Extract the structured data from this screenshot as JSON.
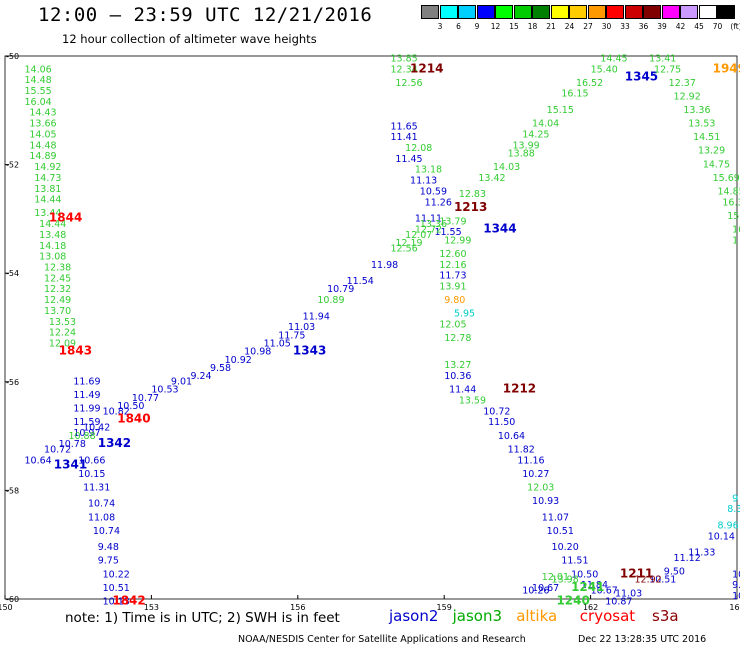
{
  "title": "12:00 – 23:59 UTC 12/21/2016",
  "subtitle": "12 hour collection of altimeter wave heights",
  "scale": {
    "colors": [
      "#808080",
      "#00ffff",
      "#00d0ff",
      "#0000ff",
      "#00ff00",
      "#00cc00",
      "#008000",
      "#ffff00",
      "#ffcc00",
      "#ff9900",
      "#ff0000",
      "#cc0000",
      "#800000",
      "#ff00ff",
      "#cc99ff",
      "#ffffff",
      "#000000"
    ],
    "labels": [
      "3",
      "6",
      "9",
      "12",
      "15",
      "18",
      "21",
      "24",
      "27",
      "30",
      "33",
      "36",
      "39",
      "42",
      "45",
      "70",
      "(ft)"
    ]
  },
  "note": "note: 1) Time is in UTC; 2) SWH is in feet",
  "satellites": [
    {
      "name": "jason2",
      "color": "#0000cc"
    },
    {
      "name": "jason3",
      "color": "#00aa00"
    },
    {
      "name": "altika",
      "color": "#ff9900"
    },
    {
      "name": "cryosat",
      "color": "#ff0000"
    },
    {
      "name": "s3a",
      "color": "#8b0000"
    }
  ],
  "footer": "NOAA/NESDIS Center for Satellite Applications and Research",
  "footer_time": "Dec 22 13:28:35 UTC 2016",
  "colors": {
    "jason2": "#0000cc",
    "jason3": "#33cc33",
    "altika": "#ff9900",
    "cryosat": "#ff0000",
    "s3a": "#800000",
    "s3a_light": "#00cccc"
  },
  "chart_data": {
    "type": "scatter",
    "title": "12:00 – 23:59 UTC 12/21/2016",
    "subtitle": "12 hour collection of altimeter wave heights",
    "xlim": [
      150,
      165
    ],
    "ylim": [
      -60,
      -50
    ],
    "x_ticks": [
      "150",
      "153",
      "156",
      "159",
      "162",
      "165"
    ],
    "y_ticks": [
      "-50",
      "-52",
      "-54",
      "-56",
      "-58",
      "-60"
    ],
    "grid": false,
    "series": [
      {
        "name": "jason2",
        "color": "#0000cc",
        "points": [
          {
            "x": 151.0,
            "y": -57.6,
            "v": "1341",
            "kind": "time"
          },
          {
            "x": 151.9,
            "y": -57.2,
            "v": "1342",
            "kind": "time"
          },
          {
            "x": 155.9,
            "y": -55.5,
            "v": "1343",
            "kind": "time"
          },
          {
            "x": 159.8,
            "y": -53.25,
            "v": "1344",
            "kind": "time"
          },
          {
            "x": 162.7,
            "y": -50.45,
            "v": "1345",
            "kind": "time"
          },
          {
            "x": 150.4,
            "y": -57.5,
            "v": "10.64"
          },
          {
            "x": 150.8,
            "y": -57.3,
            "v": "10.72"
          },
          {
            "x": 151.1,
            "y": -57.2,
            "v": "10.78"
          },
          {
            "x": 151.4,
            "y": -57.0,
            "v": "10.97"
          },
          {
            "x": 151.6,
            "y": -56.9,
            "v": "10.42"
          },
          {
            "x": 152.0,
            "y": -56.6,
            "v": "10.82"
          },
          {
            "x": 152.3,
            "y": -56.5,
            "v": "10.50"
          },
          {
            "x": 152.6,
            "y": -56.35,
            "v": "10.77"
          },
          {
            "x": 153.0,
            "y": -56.2,
            "v": "10.53"
          },
          {
            "x": 153.4,
            "y": -56.05,
            "v": "9.01"
          },
          {
            "x": 153.8,
            "y": -55.95,
            "v": "9.24"
          },
          {
            "x": 154.2,
            "y": -55.8,
            "v": "9.58"
          },
          {
            "x": 154.5,
            "y": -55.65,
            "v": "10.92"
          },
          {
            "x": 154.9,
            "y": -55.5,
            "v": "10.98"
          },
          {
            "x": 155.3,
            "y": -55.35,
            "v": "11.05"
          },
          {
            "x": 155.6,
            "y": -55.2,
            "v": "11.75"
          },
          {
            "x": 155.8,
            "y": -55.05,
            "v": "11.03"
          },
          {
            "x": 156.1,
            "y": -54.85,
            "v": "11.94"
          },
          {
            "x": 156.6,
            "y": -54.35,
            "v": "10.79"
          },
          {
            "x": 157.0,
            "y": -54.2,
            "v": "11.54"
          },
          {
            "x": 157.5,
            "y": -53.9,
            "v": "11.98"
          },
          {
            "x": 158.8,
            "y": -53.3,
            "v": "11.55"
          },
          {
            "x": 158.4,
            "y": -53.05,
            "v": "11.11"
          },
          {
            "x": 157.9,
            "y": -51.35,
            "v": "11.65"
          },
          {
            "x": 157.9,
            "y": -51.55,
            "v": "11.41"
          },
          {
            "x": 158.0,
            "y": -51.95,
            "v": "11.45"
          },
          {
            "x": 158.3,
            "y": -52.35,
            "v": "11.13"
          },
          {
            "x": 158.5,
            "y": -52.55,
            "v": "10.59"
          },
          {
            "x": 158.6,
            "y": -52.75,
            "v": "11.26"
          },
          {
            "x": 158.9,
            "y": -54.1,
            "v": "11.73"
          },
          {
            "x": 159.0,
            "y": -55.95,
            "v": "10.36"
          },
          {
            "x": 159.1,
            "y": -56.2,
            "v": "11.44"
          },
          {
            "x": 159.8,
            "y": -56.6,
            "v": "10.72"
          },
          {
            "x": 159.9,
            "y": -56.8,
            "v": "11.50"
          },
          {
            "x": 160.1,
            "y": -57.05,
            "v": "10.64"
          },
          {
            "x": 160.3,
            "y": -57.3,
            "v": "11.82"
          },
          {
            "x": 160.5,
            "y": -57.5,
            "v": "11.16"
          },
          {
            "x": 160.6,
            "y": -57.75,
            "v": "10.27"
          },
          {
            "x": 160.8,
            "y": -58.25,
            "v": "10.93"
          },
          {
            "x": 161.0,
            "y": -58.55,
            "v": "11.07"
          },
          {
            "x": 161.1,
            "y": -58.8,
            "v": "10.51"
          },
          {
            "x": 161.2,
            "y": -59.1,
            "v": "10.20"
          },
          {
            "x": 161.4,
            "y": -59.35,
            "v": "11.51"
          },
          {
            "x": 161.6,
            "y": -59.6,
            "v": "10.50"
          },
          {
            "x": 161.8,
            "y": -59.8,
            "v": "11.84"
          },
          {
            "x": 162.0,
            "y": -59.9,
            "v": "10.67"
          },
          {
            "x": 162.3,
            "y": -60.1,
            "v": "10.87"
          },
          {
            "x": 162.5,
            "y": -59.95,
            "v": "11.03"
          },
          {
            "x": 163.2,
            "y": -59.7,
            "v": "10.51"
          },
          {
            "x": 163.5,
            "y": -59.55,
            "v": "9.50"
          },
          {
            "x": 163.7,
            "y": -59.3,
            "v": "11.12"
          },
          {
            "x": 164.0,
            "y": -59.2,
            "v": "11.33"
          },
          {
            "x": 164.4,
            "y": -58.9,
            "v": "10.14"
          },
          {
            "x": 160.6,
            "y": -59.9,
            "v": "10.26"
          },
          {
            "x": 160.8,
            "y": -59.85,
            "v": "10.67"
          },
          {
            "x": 164.9,
            "y": -59.6,
            "v": "10"
          },
          {
            "x": 164.9,
            "y": -59.8,
            "v": "9.8"
          },
          {
            "x": 164.9,
            "y": -60.0,
            "v": "10.42"
          },
          {
            "x": 151.4,
            "y": -56.05,
            "v": "11.69"
          },
          {
            "x": 151.4,
            "y": -56.3,
            "v": "11.49"
          },
          {
            "x": 151.4,
            "y": -56.55,
            "v": "11.99"
          },
          {
            "x": 151.4,
            "y": -56.8,
            "v": "11.59"
          },
          {
            "x": 151.5,
            "y": -57.5,
            "v": "10.66"
          },
          {
            "x": 151.5,
            "y": -57.75,
            "v": "10.15"
          },
          {
            "x": 151.6,
            "y": -58.0,
            "v": "11.31"
          },
          {
            "x": 151.7,
            "y": -58.3,
            "v": "10.74"
          },
          {
            "x": 151.7,
            "y": -58.55,
            "v": "11.08"
          },
          {
            "x": 151.8,
            "y": -58.8,
            "v": "10.74"
          },
          {
            "x": 151.9,
            "y": -59.1,
            "v": "9.48"
          },
          {
            "x": 151.9,
            "y": -59.35,
            "v": "9.75"
          },
          {
            "x": 152.0,
            "y": -59.6,
            "v": "10.22"
          },
          {
            "x": 152.0,
            "y": -59.85,
            "v": "10.51"
          },
          {
            "x": 152.0,
            "y": -60.1,
            "v": "10.13"
          }
        ]
      },
      {
        "name": "jason3",
        "color": "#33cc33",
        "points": [
          {
            "x": 161.3,
            "y": -60.1,
            "v": "1240",
            "kind": "time"
          },
          {
            "x": 161.6,
            "y": -59.85,
            "v": "1241",
            "kind": "time"
          },
          {
            "x": 150.4,
            "y": -50.3,
            "v": "14.06"
          },
          {
            "x": 150.4,
            "y": -50.5,
            "v": "14.48"
          },
          {
            "x": 150.4,
            "y": -50.7,
            "v": "15.55"
          },
          {
            "x": 150.4,
            "y": -50.9,
            "v": "16.04"
          },
          {
            "x": 150.5,
            "y": -51.1,
            "v": "14.43"
          },
          {
            "x": 150.5,
            "y": -51.3,
            "v": "13.66"
          },
          {
            "x": 150.5,
            "y": -51.5,
            "v": "14.05"
          },
          {
            "x": 150.5,
            "y": -51.7,
            "v": "14.48"
          },
          {
            "x": 150.5,
            "y": -51.9,
            "v": "14.89"
          },
          {
            "x": 150.6,
            "y": -52.1,
            "v": "14.92"
          },
          {
            "x": 150.6,
            "y": -52.3,
            "v": "14.73"
          },
          {
            "x": 150.6,
            "y": -52.5,
            "v": "13.81"
          },
          {
            "x": 150.6,
            "y": -52.7,
            "v": "14.44"
          },
          {
            "x": 150.6,
            "y": -52.95,
            "v": "13.44"
          },
          {
            "x": 150.7,
            "y": -53.15,
            "v": "14.44"
          },
          {
            "x": 150.7,
            "y": -53.35,
            "v": "13.48"
          },
          {
            "x": 150.7,
            "y": -53.55,
            "v": "14.18"
          },
          {
            "x": 150.7,
            "y": -53.75,
            "v": "13.08"
          },
          {
            "x": 150.8,
            "y": -53.95,
            "v": "12.38"
          },
          {
            "x": 150.8,
            "y": -54.15,
            "v": "12.45"
          },
          {
            "x": 150.8,
            "y": -54.35,
            "v": "12.32"
          },
          {
            "x": 150.8,
            "y": -54.55,
            "v": "12.49"
          },
          {
            "x": 150.8,
            "y": -54.75,
            "v": "13.70"
          },
          {
            "x": 150.9,
            "y": -54.95,
            "v": "13.53"
          },
          {
            "x": 150.9,
            "y": -55.15,
            "v": "12.24"
          },
          {
            "x": 150.9,
            "y": -55.35,
            "v": "12.09"
          },
          {
            "x": 151.3,
            "y": -57.05,
            "v": "10.88"
          },
          {
            "x": 156.4,
            "y": -54.55,
            "v": "10.89"
          },
          {
            "x": 157.9,
            "y": -53.6,
            "v": "12.56"
          },
          {
            "x": 158.0,
            "y": -53.5,
            "v": "12.19"
          },
          {
            "x": 158.2,
            "y": -53.35,
            "v": "12.07"
          },
          {
            "x": 158.4,
            "y": -53.25,
            "v": "12.72"
          },
          {
            "x": 158.5,
            "y": -53.15,
            "v": "13.36"
          },
          {
            "x": 158.9,
            "y": -53.1,
            "v": "13.79"
          },
          {
            "x": 159.3,
            "y": -52.6,
            "v": "12.83"
          },
          {
            "x": 159.7,
            "y": -52.3,
            "v": "13.42"
          },
          {
            "x": 160.0,
            "y": -52.1,
            "v": "14.03"
          },
          {
            "x": 160.3,
            "y": -51.85,
            "v": "13.88"
          },
          {
            "x": 160.4,
            "y": -51.7,
            "v": "13.99"
          },
          {
            "x": 160.6,
            "y": -51.5,
            "v": "14.25"
          },
          {
            "x": 160.8,
            "y": -51.3,
            "v": "14.04"
          },
          {
            "x": 161.1,
            "y": -51.05,
            "v": "15.15"
          },
          {
            "x": 161.4,
            "y": -50.75,
            "v": "16.15"
          },
          {
            "x": 161.7,
            "y": -50.55,
            "v": "16.52"
          },
          {
            "x": 162.0,
            "y": -50.3,
            "v": "15.40"
          },
          {
            "x": 162.2,
            "y": -50.1,
            "v": "14.45"
          },
          {
            "x": 157.9,
            "y": -50.1,
            "v": "13.85"
          },
          {
            "x": 157.9,
            "y": -50.3,
            "v": "12.34"
          },
          {
            "x": 158.0,
            "y": -50.55,
            "v": "12.56"
          },
          {
            "x": 158.2,
            "y": -51.75,
            "v": "12.08"
          },
          {
            "x": 158.4,
            "y": -52.15,
            "v": "13.18"
          },
          {
            "x": 159.0,
            "y": -53.45,
            "v": "12.99"
          },
          {
            "x": 158.9,
            "y": -53.7,
            "v": "12.60"
          },
          {
            "x": 158.9,
            "y": -53.9,
            "v": "12.16"
          },
          {
            "x": 158.9,
            "y": -54.3,
            "v": "13.91"
          },
          {
            "x": 158.9,
            "y": -55.0,
            "v": "12.05"
          },
          {
            "x": 159.0,
            "y": -55.25,
            "v": "12.78"
          },
          {
            "x": 159.0,
            "y": -55.75,
            "v": "13.27"
          },
          {
            "x": 159.3,
            "y": -56.4,
            "v": "13.59"
          },
          {
            "x": 160.7,
            "y": -58.0,
            "v": "12.03"
          },
          {
            "x": 161.0,
            "y": -59.65,
            "v": "12.01"
          },
          {
            "x": 161.2,
            "y": -59.7,
            "v": "13.98"
          },
          {
            "x": 163.2,
            "y": -50.1,
            "v": "13.41"
          },
          {
            "x": 163.3,
            "y": -50.3,
            "v": "12.75"
          },
          {
            "x": 163.6,
            "y": -50.55,
            "v": "12.37"
          },
          {
            "x": 163.7,
            "y": -50.8,
            "v": "12.92"
          },
          {
            "x": 163.9,
            "y": -51.05,
            "v": "13.36"
          },
          {
            "x": 164.0,
            "y": -51.3,
            "v": "13.53"
          },
          {
            "x": 164.1,
            "y": -51.55,
            "v": "14.51"
          },
          {
            "x": 164.2,
            "y": -51.8,
            "v": "13.29"
          },
          {
            "x": 164.3,
            "y": -52.05,
            "v": "14.75"
          },
          {
            "x": 164.5,
            "y": -52.3,
            "v": "15.69"
          },
          {
            "x": 164.6,
            "y": -52.55,
            "v": "14.85"
          },
          {
            "x": 164.7,
            "y": -52.75,
            "v": "16.33"
          },
          {
            "x": 164.8,
            "y": -53.0,
            "v": "15.0"
          },
          {
            "x": 164.9,
            "y": -53.25,
            "v": "16"
          },
          {
            "x": 164.9,
            "y": -53.45,
            "v": "1"
          }
        ]
      },
      {
        "name": "altika",
        "color": "#ff9900",
        "points": [
          {
            "x": 164.5,
            "y": -50.3,
            "v": "1949",
            "kind": "time"
          },
          {
            "x": 159.0,
            "y": -54.55,
            "v": "9.80"
          }
        ]
      },
      {
        "name": "cryosat",
        "color": "#ff0000",
        "points": [
          {
            "x": 150.9,
            "y": -53.05,
            "v": "1844",
            "kind": "time"
          },
          {
            "x": 151.1,
            "y": -55.5,
            "v": "1843",
            "kind": "time"
          },
          {
            "x": 152.2,
            "y": -60.1,
            "v": "1842",
            "kind": "time"
          },
          {
            "x": 152.3,
            "y": -56.75,
            "v": "1840",
            "kind": "time"
          }
        ]
      },
      {
        "name": "s3a",
        "color": "#800000",
        "points": [
          {
            "x": 158.3,
            "y": -50.3,
            "v": "1214",
            "kind": "time"
          },
          {
            "x": 159.2,
            "y": -52.85,
            "v": "1213",
            "kind": "time"
          },
          {
            "x": 160.2,
            "y": -56.2,
            "v": "1212",
            "kind": "time"
          },
          {
            "x": 162.6,
            "y": -59.6,
            "v": "1211",
            "kind": "time"
          },
          {
            "x": 162.9,
            "y": -59.7,
            "v": "12.92"
          }
        ]
      },
      {
        "name": "s3a_light",
        "color": "#00cccc",
        "points": [
          {
            "x": 159.2,
            "y": -54.8,
            "v": "5.95"
          },
          {
            "x": 164.6,
            "y": -58.7,
            "v": "8.96"
          },
          {
            "x": 164.8,
            "y": -58.4,
            "v": "8.39"
          },
          {
            "x": 164.9,
            "y": -58.2,
            "v": "9"
          }
        ]
      }
    ]
  }
}
